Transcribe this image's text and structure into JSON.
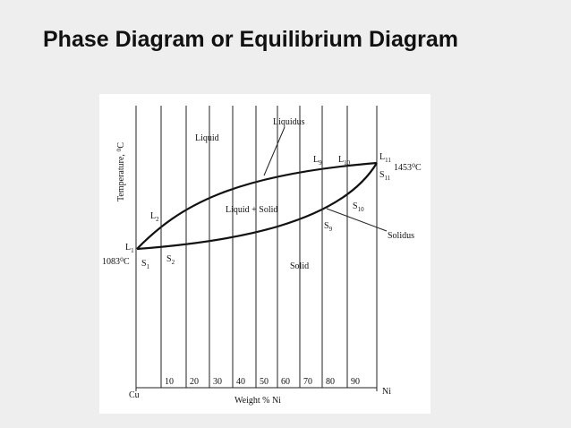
{
  "title": "Phase Diagram or Equilibrium Diagram",
  "diagram": {
    "y_axis_label": "Temperature, ⁰C",
    "x_axis_label": "Weight % Ni",
    "left_end": "Cu",
    "right_end": "Ni",
    "x_ticks": [
      "10",
      "20",
      "30",
      "40",
      "50",
      "60",
      "70",
      "80",
      "90"
    ],
    "regions": [
      "Liquid",
      "Liquid + Solid",
      "Solid"
    ],
    "curves": [
      "Liquidus",
      "Solidus"
    ],
    "points": [
      {
        "letter": "L",
        "index": "1"
      },
      {
        "letter": "S",
        "index": "1"
      },
      {
        "letter": "L",
        "index": "2"
      },
      {
        "letter": "S",
        "index": "2"
      },
      {
        "letter": "L",
        "index": "9"
      },
      {
        "letter": "S",
        "index": "9"
      },
      {
        "letter": "L",
        "index": "10"
      },
      {
        "letter": "S",
        "index": "10"
      },
      {
        "letter": "L",
        "index": "11"
      },
      {
        "letter": "S",
        "index": "11"
      }
    ],
    "temperatures": [
      "1083⁰C",
      "1453⁰C"
    ]
  }
}
